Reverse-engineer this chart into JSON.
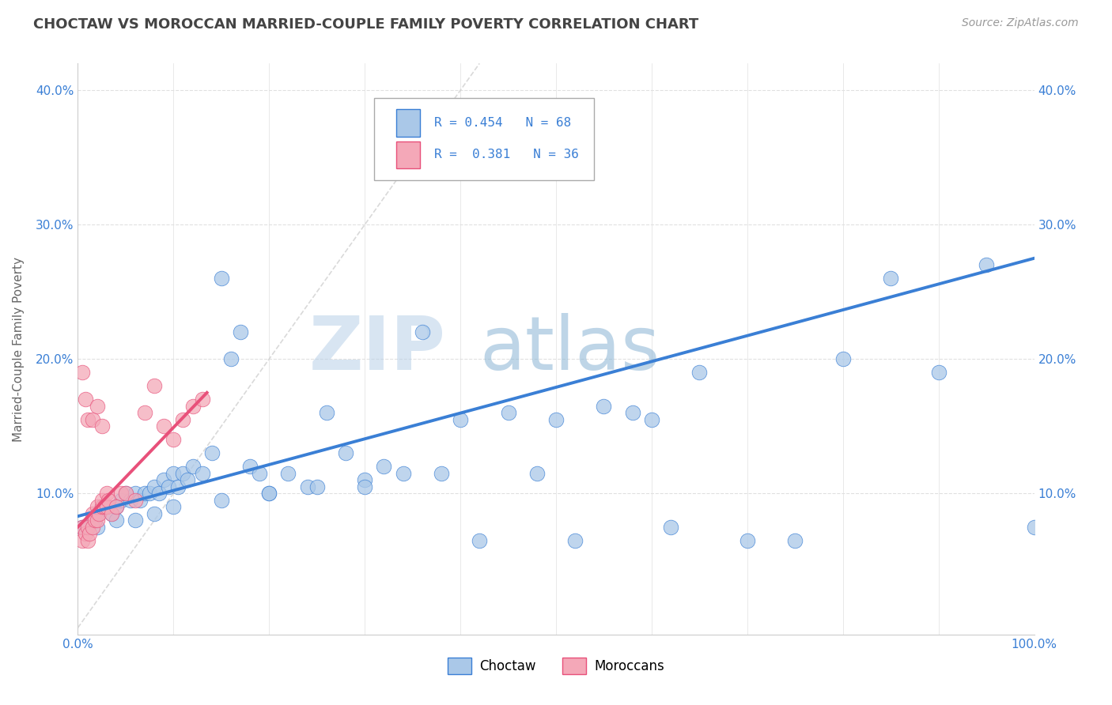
{
  "title": "CHOCTAW VS MOROCCAN MARRIED-COUPLE FAMILY POVERTY CORRELATION CHART",
  "source_text": "Source: ZipAtlas.com",
  "ylabel": "Married-Couple Family Poverty",
  "xlim": [
    0,
    1.0
  ],
  "ylim": [
    -0.005,
    0.42
  ],
  "choctaw_color": "#aac8e8",
  "moroccan_color": "#f4a8b8",
  "line_choctaw_color": "#3a7fd5",
  "line_moroccan_color": "#e8507a",
  "diagonal_color": "#d0d0d0",
  "watermark_zip_color": "#b8cfe8",
  "watermark_atlas_color": "#9ab8d8",
  "grid_color": "#e0e0e0",
  "title_color": "#444444",
  "choctaw_x": [
    0.005,
    0.01,
    0.015,
    0.02,
    0.025,
    0.03,
    0.035,
    0.04,
    0.045,
    0.05,
    0.055,
    0.06,
    0.065,
    0.07,
    0.075,
    0.08,
    0.085,
    0.09,
    0.095,
    0.1,
    0.105,
    0.11,
    0.115,
    0.12,
    0.13,
    0.14,
    0.15,
    0.16,
    0.17,
    0.18,
    0.19,
    0.2,
    0.22,
    0.24,
    0.26,
    0.28,
    0.3,
    0.32,
    0.34,
    0.36,
    0.38,
    0.4,
    0.42,
    0.45,
    0.48,
    0.5,
    0.52,
    0.55,
    0.58,
    0.6,
    0.62,
    0.65,
    0.7,
    0.75,
    0.8,
    0.85,
    0.9,
    0.95,
    1.0,
    0.02,
    0.04,
    0.06,
    0.08,
    0.1,
    0.15,
    0.2,
    0.25,
    0.3
  ],
  "choctaw_y": [
    0.075,
    0.075,
    0.08,
    0.085,
    0.09,
    0.09,
    0.085,
    0.09,
    0.095,
    0.1,
    0.095,
    0.1,
    0.095,
    0.1,
    0.1,
    0.105,
    0.1,
    0.11,
    0.105,
    0.115,
    0.105,
    0.115,
    0.11,
    0.12,
    0.115,
    0.13,
    0.26,
    0.2,
    0.22,
    0.12,
    0.115,
    0.1,
    0.115,
    0.105,
    0.16,
    0.13,
    0.11,
    0.12,
    0.115,
    0.22,
    0.115,
    0.155,
    0.065,
    0.16,
    0.115,
    0.155,
    0.065,
    0.165,
    0.16,
    0.155,
    0.075,
    0.19,
    0.065,
    0.065,
    0.2,
    0.26,
    0.19,
    0.27,
    0.075,
    0.075,
    0.08,
    0.08,
    0.085,
    0.09,
    0.095,
    0.1,
    0.105,
    0.105
  ],
  "moroccan_x": [
    0.005,
    0.005,
    0.008,
    0.01,
    0.01,
    0.012,
    0.015,
    0.015,
    0.018,
    0.02,
    0.02,
    0.022,
    0.025,
    0.025,
    0.028,
    0.03,
    0.03,
    0.032,
    0.035,
    0.04,
    0.045,
    0.05,
    0.06,
    0.07,
    0.08,
    0.09,
    0.1,
    0.11,
    0.12,
    0.13,
    0.005,
    0.008,
    0.01,
    0.015,
    0.02,
    0.025
  ],
  "moroccan_y": [
    0.065,
    0.075,
    0.07,
    0.065,
    0.075,
    0.07,
    0.075,
    0.085,
    0.08,
    0.08,
    0.09,
    0.085,
    0.09,
    0.095,
    0.09,
    0.09,
    0.1,
    0.095,
    0.085,
    0.09,
    0.1,
    0.1,
    0.095,
    0.16,
    0.18,
    0.15,
    0.14,
    0.155,
    0.165,
    0.17,
    0.19,
    0.17,
    0.155,
    0.155,
    0.165,
    0.15
  ],
  "choctaw_line_x0": 0.0,
  "choctaw_line_x1": 1.0,
  "choctaw_line_y0": 0.083,
  "choctaw_line_y1": 0.275,
  "moroccan_line_x0": 0.0,
  "moroccan_line_x1": 0.135,
  "moroccan_line_y0": 0.075,
  "moroccan_line_y1": 0.175
}
